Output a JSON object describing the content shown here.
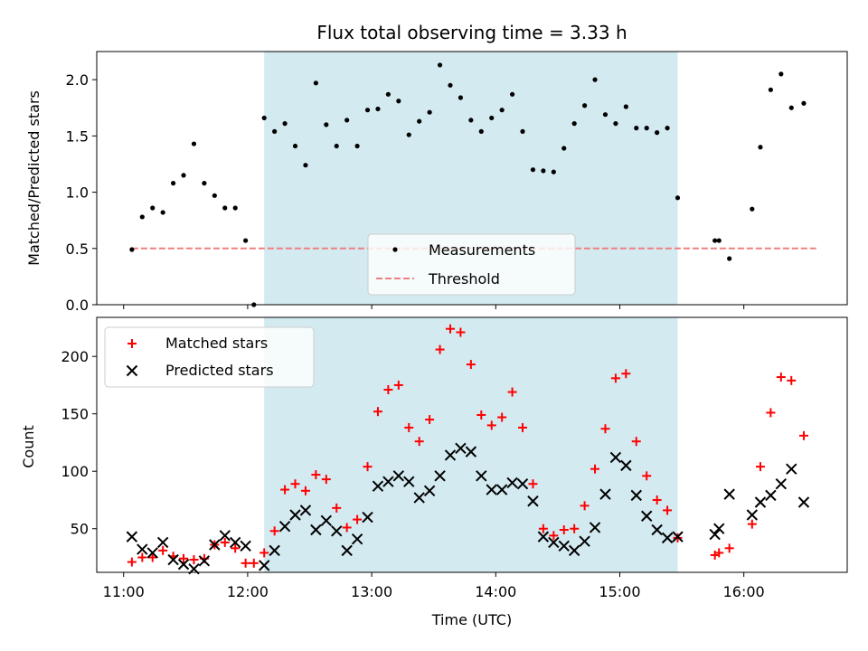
{
  "chart_data": [
    {
      "type": "scatter",
      "title": "Flux total observing time = 3.33 h",
      "xlabel": "",
      "ylabel": "Matched/Predicted stars",
      "xlim": [
        "10:47",
        "16:50"
      ],
      "ylim": [
        0,
        2.25
      ],
      "x_ticks": [
        "11:00",
        "12:00",
        "13:00",
        "14:00",
        "15:00",
        "16:00"
      ],
      "y_ticks": [
        "0.0",
        "0.5",
        "1.0",
        "1.5",
        "2.0"
      ],
      "shaded_interval": [
        "12:08",
        "15:28"
      ],
      "shade_color": "#d3eaf1",
      "legend_position": "lower center",
      "legend": {
        "measurements": "Measurements",
        "threshold": "Threshold"
      },
      "threshold": {
        "name": "Threshold",
        "value": 0.5,
        "x": [
          "11:04",
          "16:35"
        ],
        "color": "#f08080",
        "style": "dashed"
      },
      "series": [
        {
          "name": "Measurements",
          "color": "#000000",
          "marker": "dot",
          "points": [
            [
              "11:04",
              0.49
            ],
            [
              "11:09",
              0.78
            ],
            [
              "11:14",
              0.86
            ],
            [
              "11:19",
              0.82
            ],
            [
              "11:24",
              1.08
            ],
            [
              "11:29",
              1.15
            ],
            [
              "11:34",
              1.43
            ],
            [
              "11:39",
              1.08
            ],
            [
              "11:44",
              0.97
            ],
            [
              "11:49",
              0.86
            ],
            [
              "11:54",
              0.86
            ],
            [
              "11:59",
              0.57
            ],
            [
              "12:03",
              0.0
            ],
            [
              "12:08",
              1.66
            ],
            [
              "12:13",
              1.54
            ],
            [
              "12:18",
              1.61
            ],
            [
              "12:23",
              1.41
            ],
            [
              "12:28",
              1.24
            ],
            [
              "12:33",
              1.97
            ],
            [
              "12:38",
              1.6
            ],
            [
              "12:43",
              1.41
            ],
            [
              "12:48",
              1.64
            ],
            [
              "12:53",
              1.41
            ],
            [
              "12:58",
              1.73
            ],
            [
              "13:03",
              1.74
            ],
            [
              "13:08",
              1.87
            ],
            [
              "13:13",
              1.81
            ],
            [
              "13:18",
              1.51
            ],
            [
              "13:23",
              1.63
            ],
            [
              "13:28",
              1.71
            ],
            [
              "13:33",
              2.13
            ],
            [
              "13:38",
              1.95
            ],
            [
              "13:43",
              1.84
            ],
            [
              "13:48",
              1.64
            ],
            [
              "13:53",
              1.54
            ],
            [
              "13:58",
              1.66
            ],
            [
              "14:03",
              1.73
            ],
            [
              "14:08",
              1.87
            ],
            [
              "14:13",
              1.54
            ],
            [
              "14:18",
              1.2
            ],
            [
              "14:23",
              1.19
            ],
            [
              "14:28",
              1.18
            ],
            [
              "14:33",
              1.39
            ],
            [
              "14:38",
              1.61
            ],
            [
              "14:43",
              1.77
            ],
            [
              "14:48",
              2.0
            ],
            [
              "14:53",
              1.69
            ],
            [
              "14:58",
              1.61
            ],
            [
              "15:03",
              1.76
            ],
            [
              "15:08",
              1.57
            ],
            [
              "15:13",
              1.57
            ],
            [
              "15:18",
              1.53
            ],
            [
              "15:23",
              1.57
            ],
            [
              "15:28",
              0.95
            ],
            [
              "15:46",
              0.57
            ],
            [
              "15:48",
              0.57
            ],
            [
              "15:53",
              0.41
            ],
            [
              "16:04",
              0.85
            ],
            [
              "16:08",
              1.4
            ],
            [
              "16:13",
              1.91
            ],
            [
              "16:18",
              2.05
            ],
            [
              "16:23",
              1.75
            ],
            [
              "16:29",
              1.79
            ]
          ]
        }
      ]
    },
    {
      "type": "scatter",
      "title": "",
      "xlabel": "Time (UTC)",
      "ylabel": "Count",
      "xlim": [
        "10:47",
        "16:50"
      ],
      "ylim": [
        12,
        234
      ],
      "x_ticks": [
        "11:00",
        "12:00",
        "13:00",
        "14:00",
        "15:00",
        "16:00"
      ],
      "y_ticks": [
        "50",
        "100",
        "150",
        "200"
      ],
      "shaded_interval": [
        "12:08",
        "15:28"
      ],
      "shade_color": "#d3eaf1",
      "legend_position": "upper left",
      "series": [
        {
          "name": "Matched stars",
          "color": "#ff0000",
          "marker": "plus",
          "points": [
            [
              "11:04",
              21
            ],
            [
              "11:09",
              25
            ],
            [
              "11:14",
              25
            ],
            [
              "11:19",
              31
            ],
            [
              "11:24",
              26
            ],
            [
              "11:29",
              24
            ],
            [
              "11:34",
              23
            ],
            [
              "11:39",
              24
            ],
            [
              "11:44",
              36
            ],
            [
              "11:49",
              38
            ],
            [
              "11:54",
              33
            ],
            [
              "11:59",
              20
            ],
            [
              "12:03",
              20
            ],
            [
              "12:08",
              29
            ],
            [
              "12:13",
              48
            ],
            [
              "12:18",
              84
            ],
            [
              "12:23",
              89
            ],
            [
              "12:28",
              83
            ],
            [
              "12:33",
              97
            ],
            [
              "12:38",
              93
            ],
            [
              "12:43",
              68
            ],
            [
              "12:48",
              51
            ],
            [
              "12:53",
              58
            ],
            [
              "12:58",
              104
            ],
            [
              "13:03",
              152
            ],
            [
              "13:08",
              171
            ],
            [
              "13:13",
              175
            ],
            [
              "13:18",
              138
            ],
            [
              "13:23",
              126
            ],
            [
              "13:28",
              145
            ],
            [
              "13:33",
              206
            ],
            [
              "13:38",
              224
            ],
            [
              "13:43",
              221
            ],
            [
              "13:48",
              193
            ],
            [
              "13:53",
              149
            ],
            [
              "13:58",
              140
            ],
            [
              "14:03",
              147
            ],
            [
              "14:08",
              169
            ],
            [
              "14:13",
              138
            ],
            [
              "14:18",
              89
            ],
            [
              "14:23",
              50
            ],
            [
              "14:28",
              44
            ],
            [
              "14:33",
              49
            ],
            [
              "14:38",
              50
            ],
            [
              "14:43",
              70
            ],
            [
              "14:48",
              102
            ],
            [
              "14:53",
              137
            ],
            [
              "14:58",
              181
            ],
            [
              "15:03",
              185
            ],
            [
              "15:08",
              126
            ],
            [
              "15:13",
              96
            ],
            [
              "15:18",
              75
            ],
            [
              "15:23",
              66
            ],
            [
              "15:28",
              42
            ],
            [
              "15:46",
              27
            ],
            [
              "15:48",
              29
            ],
            [
              "15:53",
              33
            ],
            [
              "16:04",
              54
            ],
            [
              "16:08",
              104
            ],
            [
              "16:13",
              151
            ],
            [
              "16:18",
              182
            ],
            [
              "16:23",
              179
            ],
            [
              "16:29",
              131
            ]
          ]
        },
        {
          "name": "Predicted stars",
          "color": "#000000",
          "marker": "x",
          "points": [
            [
              "11:04",
              43
            ],
            [
              "11:09",
              32
            ],
            [
              "11:14",
              29
            ],
            [
              "11:19",
              38
            ],
            [
              "11:24",
              23
            ],
            [
              "11:29",
              19
            ],
            [
              "11:34",
              15
            ],
            [
              "11:39",
              22
            ],
            [
              "11:44",
              36
            ],
            [
              "11:49",
              44
            ],
            [
              "11:54",
              38
            ],
            [
              "11:59",
              35
            ],
            [
              "12:08",
              18
            ],
            [
              "12:13",
              31
            ],
            [
              "12:18",
              52
            ],
            [
              "12:23",
              62
            ],
            [
              "12:28",
              66
            ],
            [
              "12:33",
              49
            ],
            [
              "12:38",
              57
            ],
            [
              "12:43",
              48
            ],
            [
              "12:48",
              31
            ],
            [
              "12:53",
              41
            ],
            [
              "12:58",
              60
            ],
            [
              "13:03",
              87
            ],
            [
              "13:08",
              91
            ],
            [
              "13:13",
              96
            ],
            [
              "13:18",
              91
            ],
            [
              "13:23",
              77
            ],
            [
              "13:28",
              83
            ],
            [
              "13:33",
              96
            ],
            [
              "13:38",
              114
            ],
            [
              "13:43",
              120
            ],
            [
              "13:48",
              117
            ],
            [
              "13:53",
              96
            ],
            [
              "13:58",
              84
            ],
            [
              "14:03",
              84
            ],
            [
              "14:08",
              90
            ],
            [
              "14:13",
              89
            ],
            [
              "14:18",
              74
            ],
            [
              "14:23",
              43
            ],
            [
              "14:28",
              38
            ],
            [
              "14:33",
              35
            ],
            [
              "14:38",
              31
            ],
            [
              "14:43",
              39
            ],
            [
              "14:48",
              51
            ],
            [
              "14:53",
              80
            ],
            [
              "14:58",
              112
            ],
            [
              "15:03",
              105
            ],
            [
              "15:08",
              79
            ],
            [
              "15:13",
              61
            ],
            [
              "15:18",
              49
            ],
            [
              "15:23",
              42
            ],
            [
              "15:28",
              43
            ],
            [
              "15:46",
              45
            ],
            [
              "15:48",
              50
            ],
            [
              "15:53",
              80
            ],
            [
              "16:04",
              62
            ],
            [
              "16:08",
              73
            ],
            [
              "16:13",
              79
            ],
            [
              "16:18",
              89
            ],
            [
              "16:23",
              102
            ],
            [
              "16:29",
              73
            ]
          ]
        }
      ]
    }
  ]
}
